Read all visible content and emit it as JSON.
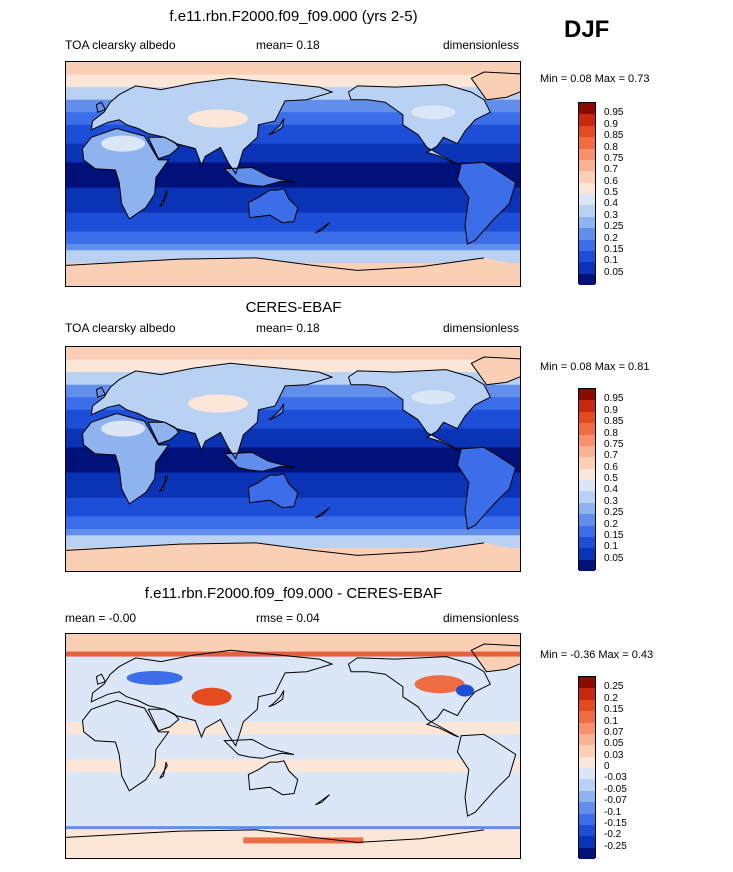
{
  "season": "DJF",
  "panels": [
    {
      "title": "f.e11.rbn.F2000.f09_f09.000 (yrs 2-5)",
      "left_label": "TOA clearsky albedo",
      "center_label": "mean=  0.18",
      "right_label": "dimensionless",
      "minmax": "Min =  0.08 Max =  0.73",
      "colorbar": {
        "labels": [
          "0.95",
          "0.9",
          "0.85",
          "0.8",
          "0.75",
          "0.7",
          "0.6",
          "0.5",
          "0.4",
          "0.3",
          "0.25",
          "0.2",
          "0.15",
          "0.1",
          "0.05"
        ],
        "colors": [
          "#8b0a00",
          "#c8280d",
          "#e34a1e",
          "#f06d43",
          "#f6916c",
          "#f9b394",
          "#fbcfb6",
          "#fbe6d8",
          "#dbe7f7",
          "#b9d1f3",
          "#8fb3ef",
          "#628fec",
          "#3b6ee8",
          "#1c4ed8",
          "#0b33b6",
          "#00127a"
        ]
      },
      "map": {
        "kind": "albedo-model"
      }
    },
    {
      "title": "CERES-EBAF",
      "left_label": "TOA clearsky albedo",
      "center_label": "mean=  0.18",
      "right_label": "dimensionless",
      "minmax": "Min =  0.08 Max =  0.81",
      "colorbar": {
        "labels": [
          "0.95",
          "0.9",
          "0.85",
          "0.8",
          "0.75",
          "0.7",
          "0.6",
          "0.5",
          "0.4",
          "0.3",
          "0.25",
          "0.2",
          "0.15",
          "0.1",
          "0.05"
        ],
        "colors": [
          "#8b0a00",
          "#c8280d",
          "#e34a1e",
          "#f06d43",
          "#f6916c",
          "#f9b394",
          "#fbcfb6",
          "#fbe6d8",
          "#dbe7f7",
          "#b9d1f3",
          "#8fb3ef",
          "#628fec",
          "#3b6ee8",
          "#1c4ed8",
          "#0b33b6",
          "#00127a"
        ]
      },
      "map": {
        "kind": "albedo-obs"
      }
    },
    {
      "title": "f.e11.rbn.F2000.f09_f09.000 - CERES-EBAF",
      "left_label": "mean =  -0.00",
      "center_label": "rmse =   0.04",
      "right_label": "dimensionless",
      "minmax": "Min =  -0.36 Max =   0.43",
      "colorbar": {
        "labels": [
          "0.25",
          "0.2",
          "0.15",
          "0.1",
          "0.07",
          "0.05",
          "0.03",
          "0",
          "-0.03",
          "-0.05",
          "-0.07",
          "-0.1",
          "-0.15",
          "-0.2",
          "-0.25"
        ],
        "colors": [
          "#8b0a00",
          "#c8280d",
          "#e34a1e",
          "#f06d43",
          "#f6916c",
          "#f9b394",
          "#fbcfb6",
          "#fbe6d8",
          "#dbe7f7",
          "#b9d1f3",
          "#8fb3ef",
          "#628fec",
          "#3b6ee8",
          "#1c4ed8",
          "#0b33b6",
          "#00127a"
        ]
      },
      "map": {
        "kind": "difference"
      }
    }
  ]
}
